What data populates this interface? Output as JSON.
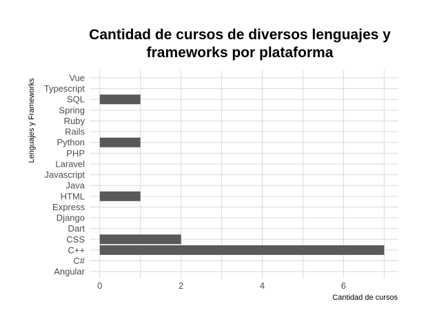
{
  "chart_data": {
    "type": "bar",
    "orientation": "horizontal",
    "title_lines": [
      "Cantidad de cursos de diversos lenguajes y",
      "frameworks por plataforma"
    ],
    "xlabel": "Cantidad de cursos",
    "ylabel": "Lenguajes y Frameworks",
    "categories": [
      "Angular",
      "C#",
      "C++",
      "CSS",
      "Dart",
      "Django",
      "Express",
      "HTML",
      "Java",
      "Javascript",
      "Laravel",
      "PHP",
      "Python",
      "Rails",
      "Ruby",
      "Spring",
      "SQL",
      "Typescript",
      "Vue"
    ],
    "values": [
      0,
      0,
      7,
      2,
      0,
      0,
      0,
      1,
      0,
      0,
      0,
      0,
      1,
      0,
      0,
      0,
      1,
      0,
      0
    ],
    "xlim": [
      -0.25,
      7.35
    ],
    "xticks": [
      0,
      2,
      4,
      6
    ],
    "x_minor": [
      1,
      3,
      5,
      7
    ],
    "grid": true,
    "bar_color": "#595959",
    "grid_color": "#d9d9d9"
  }
}
